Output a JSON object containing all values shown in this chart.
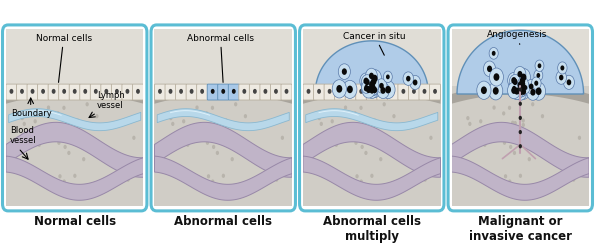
{
  "bg_color": "#ffffff",
  "panel_border_color": "#5bbdd4",
  "panel_titles": [
    "Normal cells",
    "Abnormal cells",
    "Abnormal cells\nmultiply",
    "Malignant or\ninvasive cancer"
  ],
  "tissue_top_color": "#dddad4",
  "tissue_mid_color": "#cac6be",
  "tissue_dark_band": "#b0aba2",
  "tissue_lower_color": "#d0ccc4",
  "lymph_fill": "#b8d8ea",
  "lymph_edge": "#8ab8d0",
  "blood_fill": "#c0b4c8",
  "blood_edge": "#9888a8",
  "cell_fill": "#eeeae2",
  "cell_edge": "#b8b0a0",
  "cell_nuc": "#444444",
  "abnormal_fill": "#a8c8e8",
  "abnormal_edge": "#6090b8",
  "abnormal_nuc": "#111111",
  "cancer_fill": "#b0cce8",
  "cancer_edge": "#6090b8",
  "cancer_cell_fill": "#c8dff0",
  "cancer_cell_edge": "#5878a8",
  "dot_color": "#888888",
  "label_fontsize": 6.5,
  "title_fontsize": 8.5
}
